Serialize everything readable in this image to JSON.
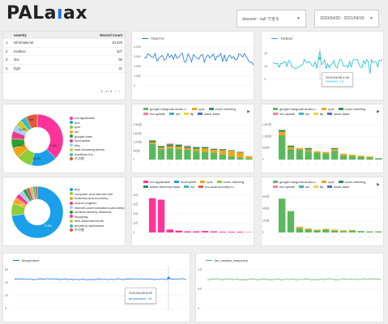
{
  "logo": {
    "text_a": "PALa",
    "text_b": "ı",
    "text_c": "ax"
  },
  "filters": {
    "dropdown1": "anousei : null で含る",
    "dropdown2": "2020/04/20 - 2021/04/30"
  },
  "severity_table": {
    "headers": [
      "",
      "severity",
      "Record Count"
    ],
    "rows": [
      [
        "1.",
        "informational",
        "10,220"
      ],
      [
        "2.",
        "medium",
        "327"
      ],
      [
        "3.",
        "low",
        "58"
      ],
      [
        "4.",
        "high",
        "31"
      ]
    ],
    "pager": "1 - 4 / 4"
  },
  "traffic": {
    "legend": "TRAFFIC",
    "color": "#1a73e8"
  },
  "threat": {
    "legend": "THREAT",
    "color": "#17becf",
    "tooltip_date": "2021/04/08 4:49",
    "tooltip_value": "THREAT: 16"
  },
  "pie1": {
    "labels": [
      "not-applicable",
      "dns",
      "quic",
      "ssl",
      "google-base",
      "incomplete",
      "http",
      "web-browsing-others",
      "insufficient-d...",
      "その他"
    ],
    "colors": [
      "#ff3399",
      "#1a9fe8",
      "#8ecc3a",
      "#f2a51a",
      "#2ca02c",
      "#e83e8c",
      "#9cd1f2",
      "#c9c93a",
      "#3cb8b8",
      "#e05a3a"
    ],
    "segment_labels": [
      "37.4%",
      "16.2%",
      "6.4%",
      "9.8%",
      "4%"
    ]
  },
  "pie2": {
    "labels": [
      "any",
      "computer-and-internet-info",
      "business-and-economy",
      "search-engines",
      "internet-communications-and-telephony",
      "content-delivery-networks",
      "shopping",
      "web-advertisements",
      "private-ip-addresses",
      "その他"
    ],
    "colors": [
      "#1a9fe8",
      "#8ecc3a",
      "#f2a51a",
      "#ff3399",
      "#9cd1f2",
      "#2ca02c",
      "#e83e8c",
      "#c9c93a",
      "#3cb8b8",
      "#e05a3a"
    ],
    "segment_labels": [
      "72.8%",
      "7.8%"
    ]
  },
  "bar1": {
    "legend": [
      {
        "name": "google-hangouts-audio-v...",
        "color": "#5cb85c"
      },
      {
        "name": "quic",
        "color": "#f2a51a"
      },
      {
        "name": "zoom-meeting",
        "color": "#2e8b57"
      },
      {
        "name": "ms-update",
        "color": "#ff77aa"
      },
      {
        "name": "ssl",
        "color": "#3cb8b8"
      },
      {
        "name": "ftp",
        "color": "#f5d33a"
      },
      {
        "name": "slack-base",
        "color": "#5c6bc0"
      }
    ],
    "ylabels": [
      "2,000億",
      "1,500億",
      "1,000億",
      "500億",
      "0"
    ]
  },
  "bar2": {
    "legend": [
      {
        "name": "google-hangouts-audio-v...",
        "color": "#5cb85c"
      },
      {
        "name": "quic",
        "color": "#f2a51a"
      },
      {
        "name": "zoom-meeting",
        "color": "#2e8b57"
      },
      {
        "name": "ms-update",
        "color": "#ff77aa"
      },
      {
        "name": "ssl",
        "color": "#3cb8b8"
      },
      {
        "name": "ftp",
        "color": "#f5d33a"
      },
      {
        "name": "slack-base",
        "color": "#5c6bc0"
      }
    ],
    "ylabels": [
      "1,500億",
      "1,000億",
      "500億",
      "0"
    ]
  },
  "bar3": {
    "legend": [
      {
        "name": "not-applicable",
        "color": "#ff3399"
      },
      {
        "name": "incomplete",
        "color": "#1a9fe8"
      },
      {
        "name": "quic",
        "color": "#f2a51a"
      },
      {
        "name": "zoom-meeting",
        "color": "#8ecc3a"
      },
      {
        "name": "active-directory-base",
        "color": "#2e8b57"
      },
      {
        "name": "ssl",
        "color": "#3cb8b8"
      },
      {
        "name": "ms-local-security-m...",
        "color": "#e05a3a"
      }
    ],
    "ylabels": [
      "40万",
      "30万",
      "20万",
      "10万",
      "0"
    ]
  },
  "bar4": {
    "legend": [
      {
        "name": "google-hangouts-audio-v...",
        "color": "#5cb85c"
      },
      {
        "name": "quic",
        "color": "#f2a51a"
      },
      {
        "name": "zoom-meeting",
        "color": "#2e8b57"
      },
      {
        "name": "ms-update",
        "color": "#ff77aa"
      },
      {
        "name": "ssl",
        "color": "#3cb8b8"
      },
      {
        "name": "ftp",
        "color": "#f5d33a"
      },
      {
        "name": "slack-base",
        "color": "#5c6bc0"
      }
    ],
    "ylabels": [
      "600億",
      "400億",
      "200億",
      "0"
    ]
  },
  "temperature": {
    "legend": "temperature",
    "color": "#1a73e8",
    "ylabels": [
      "60",
      "40",
      "20",
      "0"
    ],
    "tooltip_date": "2021/04/08 8:00",
    "tooltip_value": "temperature: 44"
  },
  "fan": {
    "legend": "fan_rotation_frequency",
    "color": "#5cb85c",
    "ylabels": [
      "1万",
      "5千",
      "0"
    ]
  }
}
